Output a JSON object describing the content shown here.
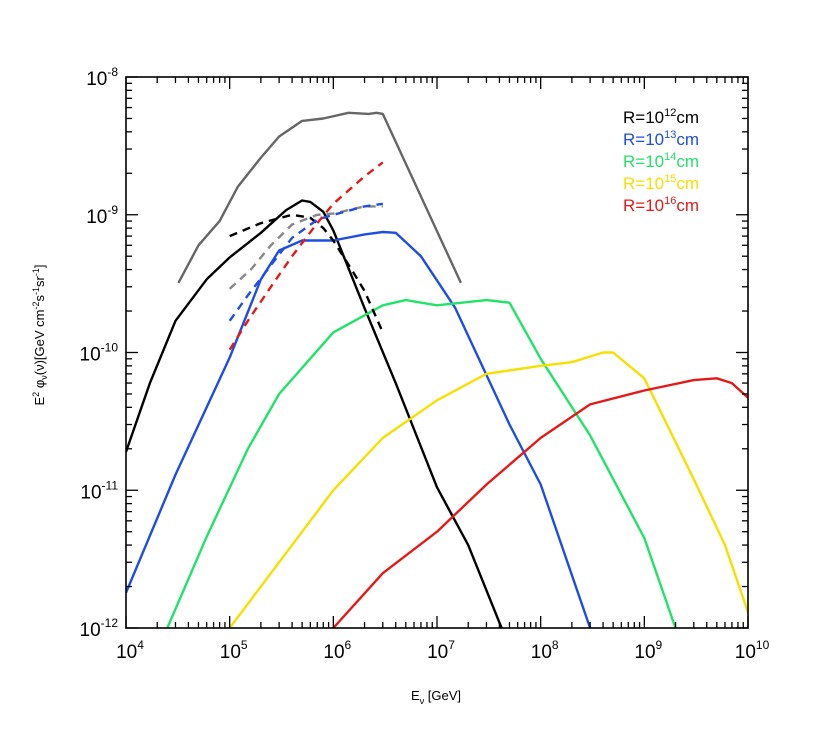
{
  "chart_data": {
    "type": "line",
    "xscale": "log",
    "yscale": "log",
    "xlim": [
      10000,
      10000000000
    ],
    "ylim": [
      1e-12,
      1e-08
    ],
    "x_ticks": [
      {
        "base": "10",
        "exp": "4"
      },
      {
        "base": "10",
        "exp": "5"
      },
      {
        "base": "10",
        "exp": "6"
      },
      {
        "base": "10",
        "exp": "7"
      },
      {
        "base": "10",
        "exp": "8"
      },
      {
        "base": "10",
        "exp": "9"
      },
      {
        "base": "10",
        "exp": "10"
      }
    ],
    "y_ticks": [
      {
        "base": "10",
        "exp": "-12"
      },
      {
        "base": "10",
        "exp": "-11"
      },
      {
        "base": "10",
        "exp": "-10"
      },
      {
        "base": "10",
        "exp": "-9"
      },
      {
        "base": "10",
        "exp": "-8"
      }
    ],
    "xlabel": {
      "main": "E",
      "sub": "ν",
      "rest": " [GeV]"
    },
    "ylabel": {
      "p1": "E",
      "s1": "2",
      "p2": " φ",
      "b1": "ν",
      "p3": "(ν)[GeV cm",
      "s2": "-2",
      "p4": "s",
      "s3": "-1",
      "p5": "sr",
      "s4": "-1",
      "p6": "]"
    },
    "legend_position": "top-right",
    "legend": [
      {
        "prefix": "R=10",
        "exp": "12",
        "suffix": "cm",
        "color": "#000000"
      },
      {
        "prefix": "R=10",
        "exp": "13",
        "suffix": "cm",
        "color": "#1f4de0"
      },
      {
        "prefix": "R=10",
        "exp": "14",
        "suffix": "cm",
        "color": "#22e36a"
      },
      {
        "prefix": "R=10",
        "exp": "15",
        "suffix": "cm",
        "color": "#f5e000"
      },
      {
        "prefix": "R=10",
        "exp": "16",
        "suffix": "cm",
        "color": "#e21a1a"
      }
    ],
    "series": [
      {
        "name": "R=10^12cm",
        "color": "#000000",
        "style": "solid",
        "points": [
          [
            10000,
            1.9e-11
          ],
          [
            17000,
            6e-11
          ],
          [
            30000,
            1.7e-10
          ],
          [
            60000,
            3.4e-10
          ],
          [
            100000,
            4.9e-10
          ],
          [
            200000,
            7.4e-10
          ],
          [
            350000,
            1.08e-09
          ],
          [
            500000,
            1.27e-09
          ],
          [
            600000,
            1.24e-09
          ],
          [
            800000,
            1.05e-09
          ],
          [
            1000000,
            7.7e-10
          ],
          [
            2000000,
            2.1e-10
          ],
          [
            4000000,
            6e-11
          ],
          [
            10000000,
            1.05e-11
          ],
          [
            20000000,
            4e-12
          ],
          [
            42000000,
            1e-12
          ]
        ]
      },
      {
        "name": "R=10^13cm",
        "color": "#1f4de0",
        "style": "solid",
        "points": [
          [
            10000,
            1.8e-12
          ],
          [
            30000,
            1.3e-11
          ],
          [
            100000,
            9.2e-11
          ],
          [
            200000,
            3.4e-10
          ],
          [
            300000,
            5.5e-10
          ],
          [
            500000,
            6.5e-10
          ],
          [
            1000000,
            6.5e-10
          ],
          [
            2000000,
            7.2e-10
          ],
          [
            3000000,
            7.5e-10
          ],
          [
            4000000,
            7.4e-10
          ],
          [
            7000000,
            5e-10
          ],
          [
            15000000,
            2.1e-10
          ],
          [
            50000000,
            3e-11
          ],
          [
            100000000,
            1.1e-11
          ],
          [
            300000000,
            1e-12
          ]
        ]
      },
      {
        "name": "R=10^14cm",
        "color": "#22e36a",
        "style": "solid",
        "points": [
          [
            25000,
            1e-12
          ],
          [
            60000,
            4.6e-12
          ],
          [
            150000,
            2e-11
          ],
          [
            300000,
            5e-11
          ],
          [
            1000000,
            1.4e-10
          ],
          [
            3000000,
            2.2e-10
          ],
          [
            5000000,
            2.4e-10
          ],
          [
            10000000,
            2.2e-10
          ],
          [
            30000000,
            2.4e-10
          ],
          [
            50000000,
            2.3e-10
          ],
          [
            100000000,
            9e-11
          ],
          [
            300000000,
            2.5e-11
          ],
          [
            1000000000,
            4.5e-12
          ],
          [
            2000000000,
            1e-12
          ]
        ]
      },
      {
        "name": "R=10^15cm",
        "color": "#f5e000",
        "style": "solid",
        "points": [
          [
            100000,
            1e-12
          ],
          [
            300000,
            3e-12
          ],
          [
            1000000,
            1e-11
          ],
          [
            3000000,
            2.4e-11
          ],
          [
            10000000,
            4.5e-11
          ],
          [
            30000000,
            7e-11
          ],
          [
            100000000,
            8e-11
          ],
          [
            200000000,
            8.5e-11
          ],
          [
            400000000,
            1e-10
          ],
          [
            500000000,
            1e-10
          ],
          [
            1000000000,
            6.5e-11
          ],
          [
            3000000000,
            1.2e-11
          ],
          [
            6000000000,
            4e-12
          ],
          [
            10000000000,
            1.3e-12
          ]
        ]
      },
      {
        "name": "R=10^16cm",
        "color": "#e21a1a",
        "style": "solid",
        "points": [
          [
            1000000,
            1e-12
          ],
          [
            3000000,
            2.5e-12
          ],
          [
            10000000,
            5e-12
          ],
          [
            30000000,
            1.1e-11
          ],
          [
            100000000,
            2.4e-11
          ],
          [
            300000000,
            4.2e-11
          ],
          [
            1000000000,
            5.3e-11
          ],
          [
            3000000000,
            6.3e-11
          ],
          [
            5000000000,
            6.5e-11
          ],
          [
            7000000000,
            6e-11
          ],
          [
            10000000000,
            4.7e-11
          ]
        ]
      },
      {
        "name": "upper-limit",
        "color": "#666666",
        "style": "solid",
        "points": [
          [
            32000,
            3.2e-10
          ],
          [
            50000,
            6e-10
          ],
          [
            80000,
            9e-10
          ],
          [
            120000,
            1.6e-09
          ],
          [
            200000,
            2.6e-09
          ],
          [
            300000,
            3.7e-09
          ],
          [
            500000,
            4.8e-09
          ],
          [
            800000,
            5e-09
          ],
          [
            1400000,
            5.5e-09
          ],
          [
            2200000,
            5.4e-09
          ],
          [
            2600000,
            5.5e-09
          ],
          [
            3000000,
            5.4e-09
          ],
          [
            17000000,
            3.2e-10
          ]
        ]
      },
      {
        "name": "R12-dashed",
        "color": "#000000",
        "style": "dashed",
        "points": [
          [
            100000,
            7e-10
          ],
          [
            200000,
            8.7e-10
          ],
          [
            400000,
            1e-09
          ],
          [
            600000,
            9.5e-10
          ],
          [
            800000,
            8e-10
          ],
          [
            1000000,
            6.5e-10
          ],
          [
            1500000,
            4e-10
          ],
          [
            2000000,
            2.8e-10
          ],
          [
            3000000,
            1.4e-10
          ]
        ]
      },
      {
        "name": "grey-dashed",
        "color": "#888888",
        "style": "dashed",
        "points": [
          [
            100000,
            2.9e-10
          ],
          [
            160000,
            4e-10
          ],
          [
            250000,
            6e-10
          ],
          [
            400000,
            8.5e-10
          ],
          [
            700000,
            1e-09
          ],
          [
            1000000,
            1.02e-09
          ],
          [
            2000000,
            1.15e-09
          ],
          [
            3000000,
            1.15e-09
          ]
        ]
      },
      {
        "name": "blue-dashed",
        "color": "#1f4de0",
        "style": "dashed",
        "points": [
          [
            100000,
            1.7e-10
          ],
          [
            150000,
            2.6e-10
          ],
          [
            250000,
            4.3e-10
          ],
          [
            400000,
            6.8e-10
          ],
          [
            700000,
            9.2e-10
          ],
          [
            1000000,
            1e-09
          ],
          [
            2000000,
            1.15e-09
          ],
          [
            3000000,
            1.2e-09
          ]
        ]
      },
      {
        "name": "red-dashed",
        "color": "#e21a1a",
        "style": "dashed",
        "points": [
          [
            100000,
            1.05e-10
          ],
          [
            150000,
            1.7e-10
          ],
          [
            250000,
            3e-10
          ],
          [
            400000,
            5e-10
          ],
          [
            700000,
            8.7e-10
          ],
          [
            1000000,
            1.2e-09
          ],
          [
            2000000,
            1.9e-09
          ],
          [
            3000000,
            2.4e-09
          ]
        ]
      }
    ]
  }
}
